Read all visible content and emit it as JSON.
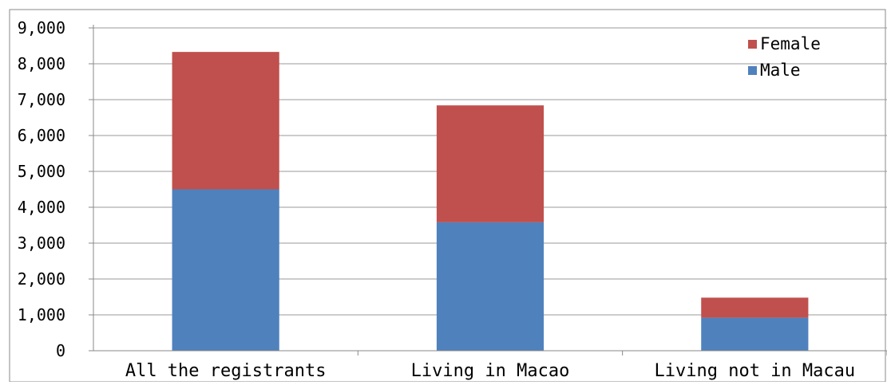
{
  "chart_data": {
    "type": "bar",
    "stacked": true,
    "categories": [
      "All the registrants",
      "Living in Macao",
      "Living not in Macau"
    ],
    "series": [
      {
        "name": "Male",
        "values": [
          4500,
          3580,
          920
        ],
        "color": "#4f81bd"
      },
      {
        "name": "Female",
        "values": [
          3830,
          3260,
          560
        ],
        "color": "#c0504d"
      }
    ],
    "y_ticks": [
      "0",
      "1,000",
      "2,000",
      "3,000",
      "4,000",
      "5,000",
      "6,000",
      "7,000",
      "8,000",
      "9,000"
    ],
    "ylim": [
      0,
      9000
    ],
    "grid": true,
    "legend_position": "top-right",
    "legend": [
      "Female",
      "Male"
    ]
  }
}
